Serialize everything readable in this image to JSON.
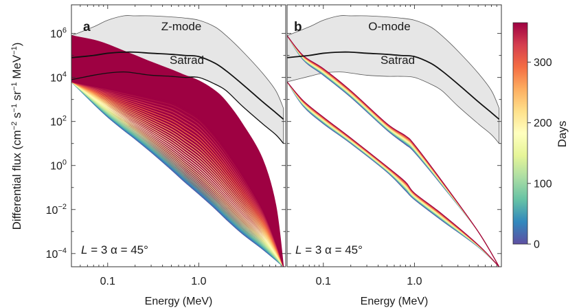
{
  "figure": {
    "y_axis_label": "Differential flux (cm",
    "y_axis_label_sup1": "−2",
    "y_axis_label_mid1": " s",
    "y_axis_label_sup2": "−1",
    "y_axis_label_mid2": " sr",
    "y_axis_label_sup3": "−1",
    "y_axis_label_mid3": " MeV",
    "y_axis_label_sup4": "−1",
    "y_axis_label_end": ")",
    "colorbar": {
      "label": "Days",
      "range": [
        0,
        365
      ],
      "ticks": [
        "0",
        "100",
        "200",
        "300"
      ],
      "tick_values": [
        0,
        100,
        200,
        300
      ],
      "colormap": [
        "#5e4fa2",
        "#3288bd",
        "#66c2a5",
        "#abdda4",
        "#e6f598",
        "#ffffbf",
        "#fee08b",
        "#fdae61",
        "#f46d43",
        "#d53e4f",
        "#9e0142"
      ]
    }
  },
  "panels": [
    {
      "letter": "a",
      "title": "Z-mode",
      "xlabel": "Energy (MeV)",
      "satrad_label": "Satrad",
      "annotation_L": "L",
      "annotation_rest": " = 3 α = 45°"
    },
    {
      "letter": "b",
      "title": "O-mode",
      "xlabel": "Energy (MeV)",
      "satrad_label": "Satrad",
      "annotation_L": "L",
      "annotation_rest": " = 3 α = 45°"
    }
  ],
  "axes": {
    "x_ticks": [
      "0.1",
      "1.0"
    ],
    "x_tick_values": [
      0.1,
      1.0
    ],
    "y_ticks": [
      {
        "base": "10",
        "exp": "6",
        "value": 6
      },
      {
        "base": "10",
        "exp": "4",
        "value": 4
      },
      {
        "base": "10",
        "exp": "2",
        "value": 2
      },
      {
        "base": "10",
        "exp": "0",
        "value": 0
      },
      {
        "base": "10",
        "exp": "−2",
        "value": -2
      },
      {
        "base": "10",
        "exp": "−4",
        "value": -4
      }
    ]
  },
  "chart_data": [
    {
      "type": "area",
      "panel": "a",
      "title": "Z-mode",
      "xlabel": "Energy (MeV)",
      "ylabel": "Differential flux (cm−2 s−1 sr−1 MeV−1)",
      "x_scale": "log",
      "y_scale": "log",
      "xlim": [
        0.04,
        9.0
      ],
      "ylim_log10": [
        -4.6,
        7.3
      ],
      "satrad_band": {
        "x": [
          0.04,
          0.07,
          0.1,
          0.15,
          0.2,
          0.3,
          0.5,
          0.7,
          1.0,
          1.5,
          2.0,
          3.0,
          5.0,
          7.0,
          8.5
        ],
        "upper_log10": [
          5.9,
          6.3,
          6.6,
          6.8,
          6.8,
          6.8,
          6.75,
          6.7,
          6.6,
          6.3,
          5.9,
          5.2,
          4.2,
          3.4,
          2.6
        ],
        "median_log10": [
          4.9,
          5.0,
          5.1,
          5.15,
          5.15,
          5.1,
          5.05,
          5.0,
          4.95,
          4.65,
          4.3,
          3.7,
          2.9,
          2.4,
          2.1
        ],
        "lower_log10": [
          3.8,
          4.05,
          4.2,
          4.25,
          4.2,
          4.1,
          4.05,
          4.05,
          4.0,
          3.7,
          3.4,
          2.7,
          1.9,
          1.4,
          1.0
        ],
        "inner_line_log10": [
          3.9,
          4.1,
          4.2,
          4.25,
          4.2,
          4.1,
          4.05,
          4.0,
          4.0,
          3.7,
          3.4,
          2.7,
          1.9,
          1.4,
          1.0
        ]
      },
      "evolution": {
        "day_range": [
          0,
          365
        ],
        "x": [
          0.04,
          0.07,
          0.1,
          0.15,
          0.2,
          0.3,
          0.5,
          0.7,
          1.0,
          1.5,
          2.0,
          3.0,
          5.0,
          7.0,
          8.5
        ],
        "initial_log10": [
          3.8,
          2.8,
          2.2,
          1.6,
          1.2,
          0.6,
          -0.2,
          -0.75,
          -1.3,
          -1.95,
          -2.45,
          -3.1,
          -3.8,
          -4.3,
          -4.6
        ],
        "final_upper_log10": [
          5.9,
          5.7,
          5.5,
          5.2,
          5.0,
          4.7,
          4.35,
          4.1,
          3.85,
          3.4,
          2.9,
          1.9,
          0.3,
          -1.8,
          -4.6
        ],
        "final_lower_log10": [
          3.8,
          3.6,
          3.5,
          3.35,
          3.25,
          3.1,
          2.9,
          2.6,
          2.2,
          1.4,
          0.7,
          -0.4,
          -2.0,
          -3.5,
          -4.6
        ]
      }
    },
    {
      "type": "line",
      "panel": "b",
      "title": "O-mode",
      "xlabel": "Energy (MeV)",
      "ylabel": "Differential flux (cm−2 s−1 sr−1 MeV−1)",
      "x_scale": "log",
      "y_scale": "log",
      "xlim": [
        0.04,
        9.0
      ],
      "ylim_log10": [
        -4.6,
        7.3
      ],
      "satrad_band": {
        "x": [
          0.04,
          0.07,
          0.1,
          0.15,
          0.2,
          0.3,
          0.5,
          0.7,
          1.0,
          1.5,
          2.0,
          3.0,
          5.0,
          7.0,
          8.5
        ],
        "upper_log10": [
          5.9,
          6.3,
          6.6,
          6.8,
          6.8,
          6.8,
          6.75,
          6.7,
          6.6,
          6.3,
          5.9,
          5.2,
          4.2,
          3.4,
          2.6
        ],
        "median_log10": [
          4.9,
          5.0,
          5.1,
          5.15,
          5.15,
          5.1,
          5.05,
          5.0,
          4.95,
          4.65,
          4.3,
          3.7,
          2.9,
          2.4,
          2.1
        ],
        "lower_log10": [
          3.8,
          4.05,
          4.2,
          4.25,
          4.2,
          4.1,
          4.05,
          4.05,
          4.0,
          3.7,
          3.4,
          2.7,
          1.9,
          1.4,
          1.0
        ]
      },
      "bundles": [
        {
          "x": [
            0.04,
            0.06,
            0.1,
            0.2,
            0.5,
            0.8,
            1.0,
            2.0,
            5.0,
            8.5
          ],
          "day0_log10": [
            5.9,
            4.8,
            4.1,
            3.1,
            1.6,
            0.95,
            0.6,
            -0.9,
            -3.0,
            -4.6
          ],
          "day365_log10": [
            5.9,
            5.0,
            4.4,
            3.4,
            1.9,
            1.35,
            0.95,
            -0.7,
            -3.0,
            -4.6
          ]
        },
        {
          "x": [
            0.04,
            0.06,
            0.1,
            0.2,
            0.5,
            0.8,
            1.0,
            2.0,
            5.0,
            8.5
          ],
          "day0_log10": [
            3.8,
            2.7,
            1.9,
            1.0,
            -0.3,
            -1.15,
            -1.55,
            -2.5,
            -3.7,
            -4.6
          ],
          "day365_log10": [
            3.8,
            2.95,
            2.2,
            1.25,
            -0.05,
            -0.75,
            -1.25,
            -2.2,
            -3.6,
            -4.6
          ]
        }
      ]
    }
  ]
}
